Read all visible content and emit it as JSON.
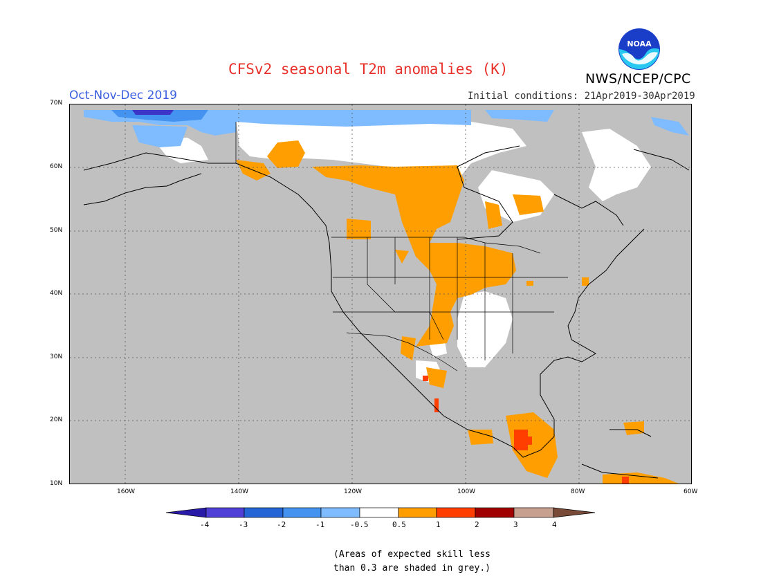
{
  "header": {
    "title": "CFSv2 seasonal T2m anomalies (K)",
    "agency": "NWS/NCEP/CPC",
    "period": "Oct-Nov-Dec 2019",
    "initial_conditions": "Initial conditions: 21Apr2019-30Apr2019",
    "logo_text": "NOAA"
  },
  "map": {
    "lat_labels": [
      "70N",
      "60N",
      "50N",
      "40N",
      "30N",
      "20N",
      "10N"
    ],
    "lon_labels": [
      "160W",
      "140W",
      "120W",
      "100W",
      "80W",
      "60W"
    ],
    "colors": {
      "skill_grey": "#c0c0c0",
      "neutral": "#ffffff",
      "warm_05_1": "#ff9e00",
      "warm_1_2": "#ff3e00",
      "cold_05_1": "#7fbcff",
      "cold_1_2": "#4593f0",
      "cold_2_3": "#2466d6",
      "cold_3_4": "#3c35c8"
    }
  },
  "legend": {
    "labels": [
      "-4",
      "-3",
      "-2",
      "-1",
      "-0.5",
      "0.5",
      "1",
      "2",
      "3",
      "4"
    ],
    "colors": [
      "#2a1aa8",
      "#5040d8",
      "#2466d6",
      "#4593f0",
      "#7fbcff",
      "#ffffff",
      "#ff9e00",
      "#ff3e00",
      "#a00000",
      "#c8a090",
      "#7a4a38"
    ]
  },
  "note": {
    "line1": "(Areas of expected skill less",
    "line2": "than 0.3 are shaded in grey.)"
  }
}
